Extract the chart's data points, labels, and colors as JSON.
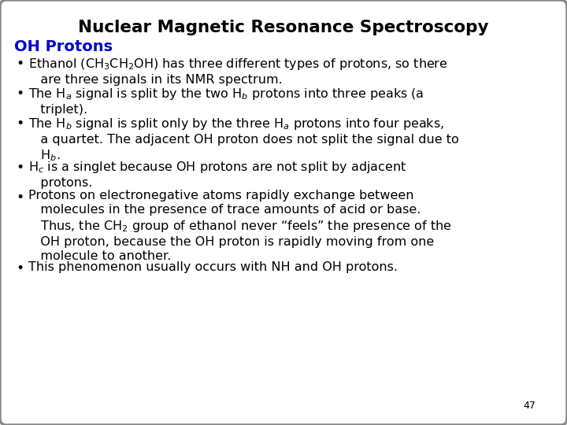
{
  "title": "Nuclear Magnetic Resonance Spectroscopy",
  "subtitle": "OH Protons",
  "subtitle_color": "#0000CC",
  "background_color": "#FFFFFF",
  "border_color": "#888888",
  "title_fontsize": 15.5,
  "subtitle_fontsize": 14,
  "body_fontsize": 11.5,
  "page_number": "47",
  "page_number_fontsize": 9
}
